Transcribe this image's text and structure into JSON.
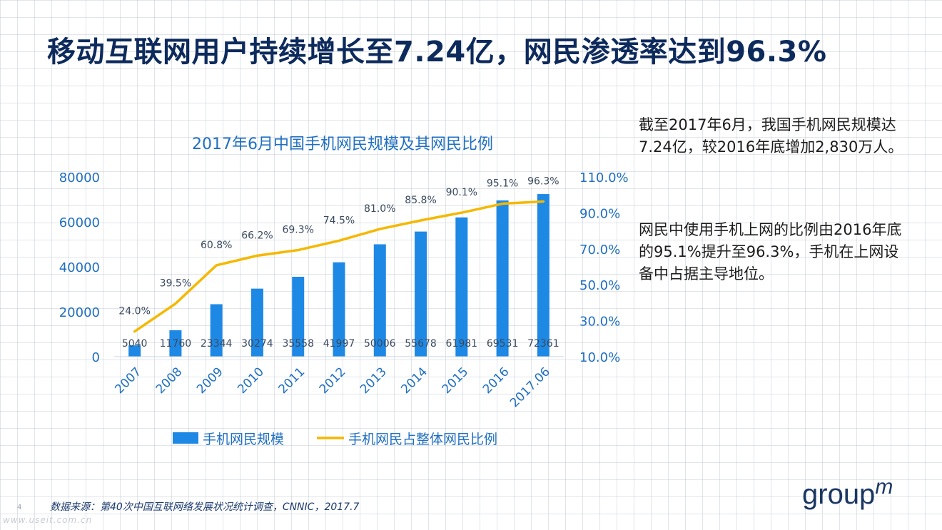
{
  "slide": {
    "title": "移动互联网用户持续增长至7.24亿，网民渗透率达到96.3%",
    "paragraph1": "截至2017年6月，我国手机网民规模达7.24亿，较2016年底增加2,830万人。",
    "paragraph2": "网民中使用手机上网的比例由2016年底的95.1%提升至96.3%，手机在上网设备中占据主导地位。",
    "source": "数据来源：第40次中国互联网络发展状况统计调查，CNNIC，2017.7",
    "page_number": "4",
    "watermark": "www.useit.com.cn",
    "logo_text": "groupm"
  },
  "chart_data": {
    "type": "bar",
    "title": "2017年6月中国手机网民规模及其网民比例",
    "categories": [
      "2007",
      "2008",
      "2009",
      "2010",
      "2011",
      "2012",
      "2013",
      "2014",
      "2015",
      "2016",
      "2017.06"
    ],
    "series": [
      {
        "name": "手机网民规模",
        "type": "bar",
        "axis": "left",
        "color": "#1e88e5",
        "values": [
          5040,
          11760,
          23344,
          30274,
          35558,
          41997,
          50006,
          55678,
          61981,
          69531,
          72361
        ],
        "labels": [
          "5040",
          "11760",
          "23344",
          "30274",
          "35558",
          "41997",
          "50006",
          "55678",
          "61981",
          "69531",
          "72361"
        ]
      },
      {
        "name": "手机网民占整体网民比例",
        "type": "line",
        "axis": "right",
        "color": "#f5b800",
        "values": [
          24.0,
          39.5,
          60.8,
          66.2,
          69.3,
          74.5,
          81.0,
          85.8,
          90.1,
          95.1,
          96.3
        ],
        "labels": [
          "24.0%",
          "39.5%",
          "60.8%",
          "66.2%",
          "69.3%",
          "74.5%",
          "81.0%",
          "85.8%",
          "90.1%",
          "95.1%",
          "96.3%"
        ]
      }
    ],
    "y_left": {
      "min": 0,
      "max": 80000,
      "ticks": [
        "0",
        "20000",
        "40000",
        "60000",
        "80000"
      ]
    },
    "y_right": {
      "min": 10,
      "max": 110,
      "ticks": [
        "10.0%",
        "30.0%",
        "50.0%",
        "70.0%",
        "90.0%",
        "110.0%"
      ]
    },
    "legend_position": "bottom",
    "grid": false,
    "colors": {
      "bar": "#1e88e5",
      "line": "#f5b800",
      "axis_text": "#1f6fc1",
      "title": "#1f6fc1"
    }
  }
}
